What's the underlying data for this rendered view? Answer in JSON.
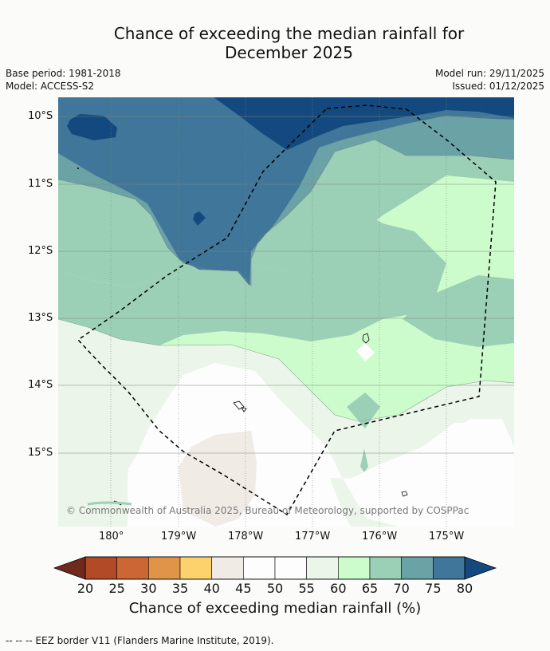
{
  "header": {
    "title_line1": "Chance of exceeding the median rainfall for",
    "title_line2": "December 2025",
    "base_period": "Base period: 1981-2018",
    "model": "Model: ACCESS-S2",
    "model_run": "Model run: 29/11/2025",
    "issued": "Issued: 01/12/2025"
  },
  "map": {
    "lat_labels": [
      "10°S",
      "11°S",
      "12°S",
      "13°S",
      "14°S",
      "15°S"
    ],
    "lon_labels": [
      "180°",
      "179°W",
      "178°W",
      "177°W",
      "176°W",
      "175°W"
    ],
    "copyright": "© Commonwealth of Australia 2025, Bureau of Meteorology, supported by COSPPac"
  },
  "colorbar": {
    "ticks": [
      "20",
      "25",
      "30",
      "35",
      "40",
      "45",
      "50",
      "55",
      "60",
      "65",
      "70",
      "75",
      "80"
    ],
    "colors": [
      "#6e2a1c",
      "#b34a27",
      "#cc6634",
      "#e0944a",
      "#fdd26c",
      "#f1ebe6",
      "#fdfdfd",
      "#fdfdfd",
      "#ebf5e9",
      "#ccfccc",
      "#9bd0b6",
      "#6aa2a6",
      "#3f7699",
      "#14497f"
    ],
    "label": "Chance of exceeding median rainfall (%)"
  },
  "footer": {
    "legend": "--  --  -- EEZ border V11 (Flanders Marine Institute, 2019)."
  }
}
